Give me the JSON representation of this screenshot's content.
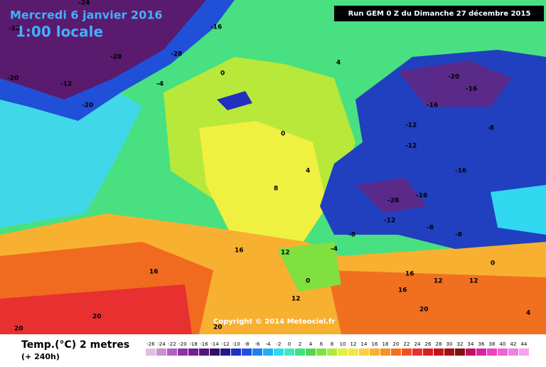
{
  "header": {
    "title": "Mercredi 6 janvier 2016",
    "time": "1:00 locale",
    "run": "Run GEM 0 Z du Dimanche 27 décembre 2015"
  },
  "copyright": "Copyright © 2014 Meteociel.fr",
  "legend": {
    "title": "Temp.(°C) 2 metres",
    "subtitle": "(+ 240h)",
    "scale": [
      -26,
      -24,
      -22,
      -20,
      -18,
      -16,
      -14,
      -12,
      -10,
      -8,
      -6,
      -4,
      -2,
      0,
      2,
      4,
      6,
      8,
      10,
      12,
      14,
      16,
      18,
      20,
      22,
      24,
      26,
      28,
      30,
      32,
      34,
      36,
      38,
      40,
      42,
      44
    ],
    "colors": [
      "#e0c0e0",
      "#c890d0",
      "#b060c0",
      "#9030a8",
      "#702090",
      "#501878",
      "#301060",
      "#201890",
      "#2030c0",
      "#2050e0",
      "#2080f0",
      "#20b0f0",
      "#30d8f0",
      "#40e8c0",
      "#40e080",
      "#50d850",
      "#80e040",
      "#b0e840",
      "#e0f040",
      "#f0e840",
      "#f8d040",
      "#f8b030",
      "#f89020",
      "#f07020",
      "#f05020",
      "#e83030",
      "#d82020",
      "#c01818",
      "#a01010",
      "#801010",
      "#c01060",
      "#e020a0",
      "#f040c0",
      "#f060d8",
      "#f080e0",
      "#f8a0f0"
    ]
  },
  "map_labels": [
    "-24",
    "-12",
    "-16",
    "-28",
    "-28",
    "-20",
    "-12",
    "-20",
    "-4",
    "0",
    "0",
    "4",
    "4",
    "-20",
    "-16",
    "-16",
    "-8",
    "-12",
    "-16",
    "-28",
    "-16",
    "-12",
    "-8",
    "-4",
    "0",
    "8",
    "12",
    "16",
    "16",
    "12",
    "12",
    "16",
    "20",
    "16",
    "20",
    "20",
    "20",
    "12",
    "-12",
    "-8",
    "-8",
    "0",
    "4"
  ]
}
